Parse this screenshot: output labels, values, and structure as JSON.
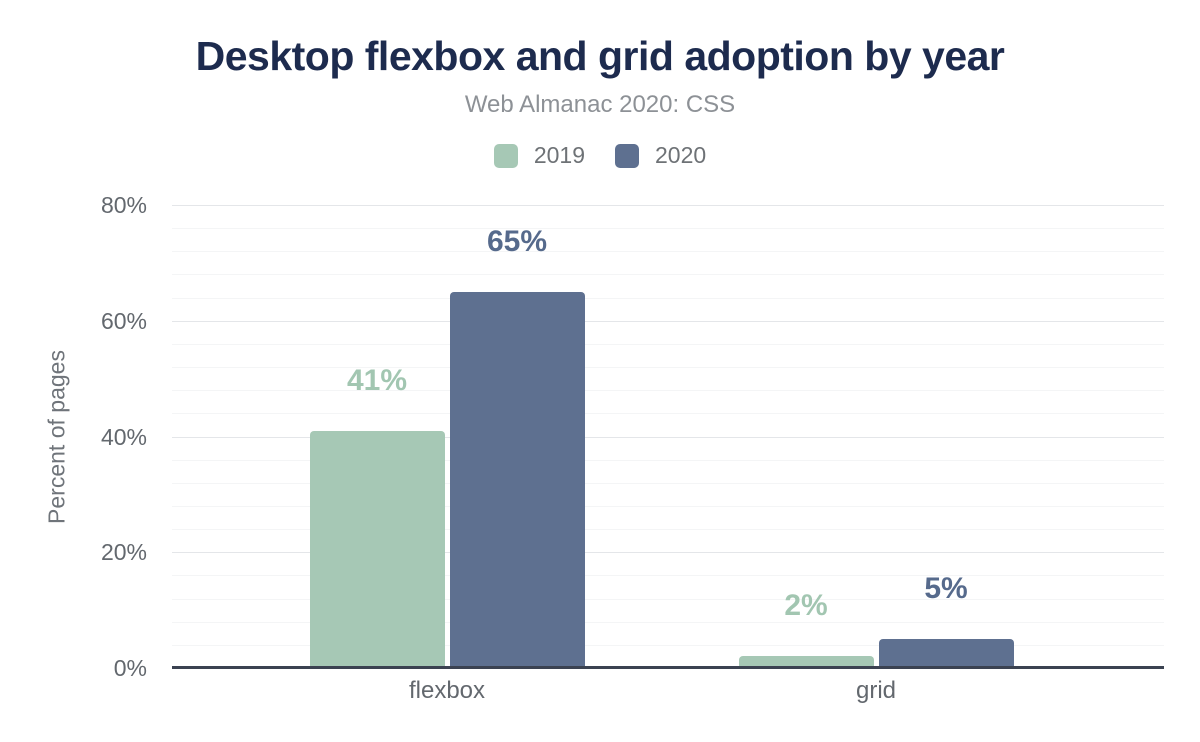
{
  "header": {
    "title": "Desktop flexbox and grid adoption by year",
    "subtitle": "Web Almanac 2020: CSS"
  },
  "colors": {
    "title_text": "#1d2b4e",
    "subtitle_text": "#8d9196",
    "axis_text": "#63686e",
    "axis_line": "#3b4251",
    "grid_major": "#e4e6e9",
    "grid_minor": "#f4f5f6",
    "series_2019": "#a6c8b5",
    "series_2020": "#5e7090"
  },
  "chart_data": {
    "type": "bar",
    "title": "Desktop flexbox and grid adoption by year",
    "subtitle": "Web Almanac 2020: CSS",
    "categories": [
      "flexbox",
      "grid"
    ],
    "series": [
      {
        "name": "2019",
        "color": "#a6c8b5",
        "label_color": "#a2c6b1",
        "values": [
          41,
          2
        ],
        "data_labels": [
          "41%",
          "2%"
        ]
      },
      {
        "name": "2020",
        "color": "#5e7090",
        "label_color": "#566a8c",
        "values": [
          65,
          5
        ],
        "data_labels": [
          "65%",
          "5%"
        ]
      }
    ],
    "xlabel": "",
    "ylabel": "Percent of pages",
    "ylim": [
      0,
      80
    ],
    "yticks": [
      {
        "value": 0,
        "label": "0%"
      },
      {
        "value": 20,
        "label": "20%"
      },
      {
        "value": 40,
        "label": "40%"
      },
      {
        "value": 60,
        "label": "60%"
      },
      {
        "value": 80,
        "label": "80%"
      }
    ],
    "minor_grid_step": 4,
    "grid": true,
    "legend_position": "top"
  }
}
